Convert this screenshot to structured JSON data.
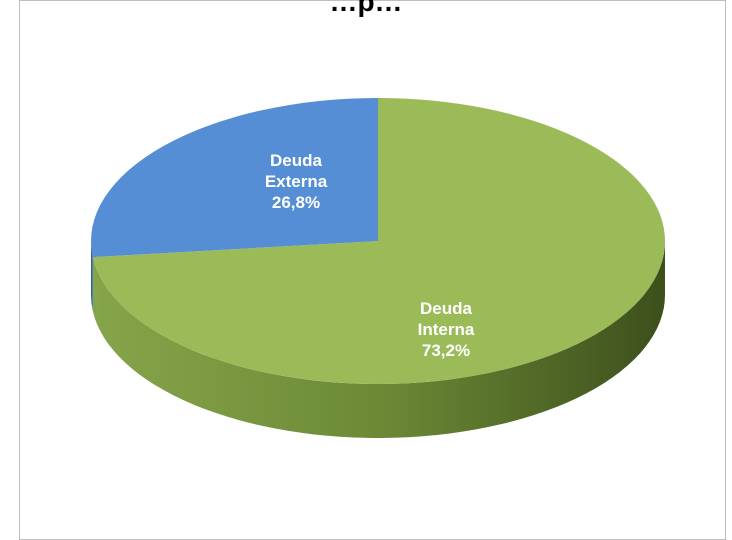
{
  "chart_data": {
    "type": "pie",
    "style": "3d",
    "title": "…p…",
    "slices": [
      {
        "label_line1": "Deuda",
        "label_line2": "Interna",
        "label_pct": "73,2%",
        "value": 73.2,
        "color": "#9bbb59",
        "side_dark": "#5e7a2c",
        "side_light": "#86a54a"
      },
      {
        "label_line1": "Deuda",
        "label_line2": "Externa",
        "label_pct": "26,8%",
        "value": 26.8,
        "color": "#558ed5",
        "side_dark": "#2e5a96",
        "side_light": "#3f6fae"
      }
    ],
    "legend": "none"
  }
}
